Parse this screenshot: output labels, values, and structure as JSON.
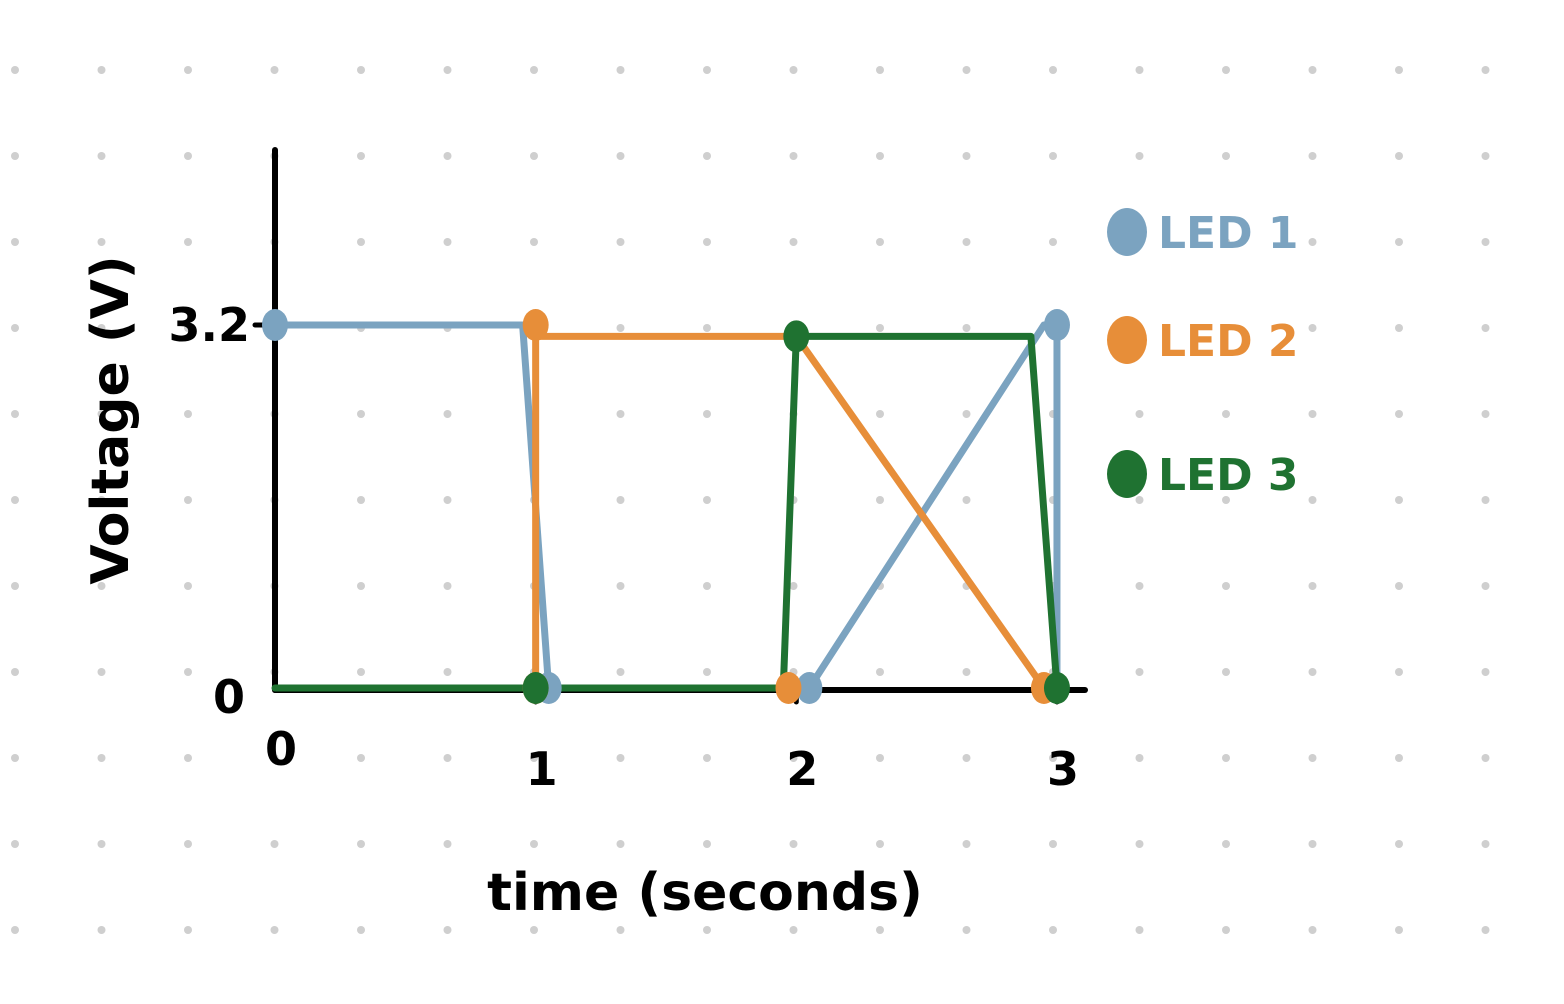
{
  "chart_data": {
    "type": "line",
    "title": "",
    "xlabel": "time (seconds)",
    "ylabel": "Voltage (V)",
    "xlim": [
      0,
      3.5
    ],
    "ylim": [
      0,
      4.5
    ],
    "x_ticks": [
      {
        "value": 0,
        "label": "0"
      },
      {
        "value": 1,
        "label": "1"
      },
      {
        "value": 2,
        "label": "2"
      },
      {
        "value": 3,
        "label": "3"
      }
    ],
    "y_ticks": [
      {
        "value": 0,
        "label": "0"
      },
      {
        "value": 3.2,
        "label": "3.2"
      }
    ],
    "grid": "dotted",
    "legend_position": "right",
    "series": [
      {
        "name": "LED 1",
        "color": "#7ba3c0",
        "x": [
          0,
          0.95,
          1.05,
          2.05,
          2.95,
          3.0,
          3.0
        ],
        "y": [
          3.2,
          3.2,
          0,
          0,
          3.2,
          3.2,
          0
        ],
        "points": [
          [
            0,
            3.2
          ],
          [
            1.05,
            0
          ],
          [
            2.05,
            0
          ],
          [
            3.0,
            3.2
          ]
        ]
      },
      {
        "name": "LED 2",
        "color": "#e78e39",
        "x": [
          1.0,
          1.0,
          1.0,
          2.0,
          2.95,
          2.95
        ],
        "y": [
          0,
          3.2,
          3.1,
          3.1,
          0,
          0
        ],
        "points": [
          [
            1.0,
            3.2
          ],
          [
            1.0,
            0
          ],
          [
            1.97,
            0
          ],
          [
            2.95,
            0
          ]
        ]
      },
      {
        "name": "LED 3",
        "color": "#1f7231",
        "x": [
          0,
          1.0,
          1.95,
          2.0,
          2.9,
          3.0,
          3.0
        ],
        "y": [
          0,
          0,
          0,
          3.1,
          3.1,
          0,
          0
        ],
        "points": [
          [
            1.0,
            0
          ],
          [
            2.0,
            3.1
          ],
          [
            3.0,
            0
          ]
        ]
      }
    ]
  }
}
